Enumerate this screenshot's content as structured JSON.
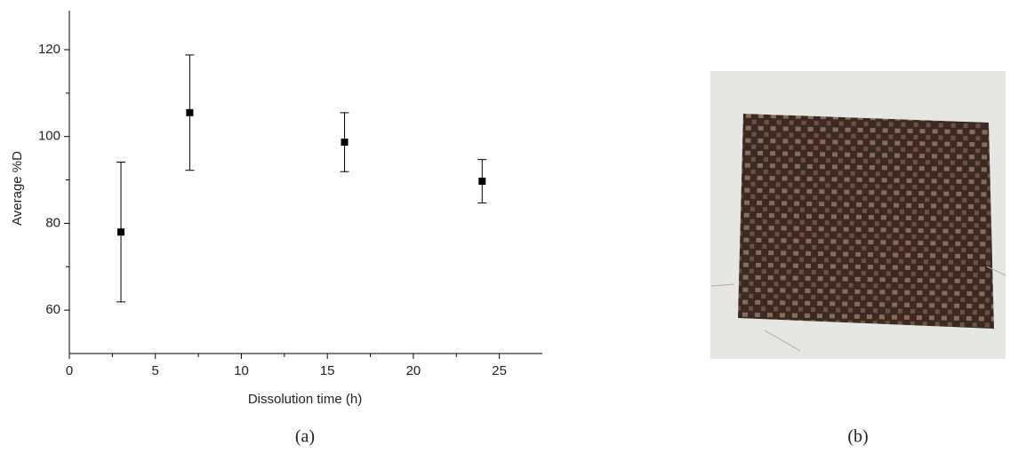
{
  "chart_data": {
    "type": "scatter",
    "x_label": "Dissolution time (h)",
    "y_label": "Average %D",
    "x": [
      3,
      7,
      16,
      24
    ],
    "series": [
      {
        "color": "#000000",
        "values": [
          78,
          105.5,
          98.7,
          89.7
        ],
        "errors": [
          16.1,
          13.3,
          6.8,
          5
        ]
      }
    ],
    "xlim": [
      0,
      27.5
    ],
    "ylim": [
      50,
      129
    ],
    "xticks": [
      0,
      5,
      10,
      15,
      20,
      25
    ],
    "yticks": [
      60,
      80,
      100,
      120
    ],
    "xminorticks": [
      2.5,
      7.5,
      12.5,
      17.5,
      22.5
    ],
    "yminorticks": [
      70,
      90,
      110
    ],
    "panel_label": "(a)"
  },
  "photo": {
    "panel_label": "(b)"
  }
}
